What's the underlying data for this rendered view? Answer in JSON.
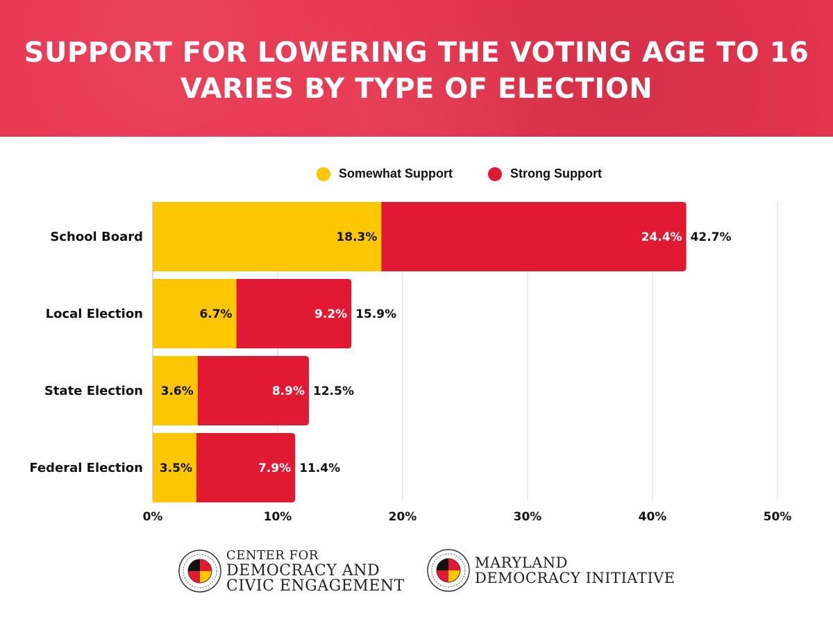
{
  "title": {
    "line1": "SUPPORT FOR LOWERING THE VOTING AGE TO 16",
    "line2": "VARIES BY TYPE OF ELECTION"
  },
  "colors": {
    "banner": "#e8344f",
    "somewhat": "#fcc600",
    "strong": "#e21933",
    "grid": "#d9d9d9"
  },
  "legend": {
    "somewhat": "Somewhat Support",
    "strong": "Strong Support"
  },
  "chart_data": {
    "type": "bar",
    "orientation": "horizontal",
    "stacked": true,
    "categories": [
      "School Board",
      "Local Election",
      "State Election",
      "Federal Election"
    ],
    "series": [
      {
        "name": "Somewhat Support",
        "values": [
          18.3,
          6.7,
          3.6,
          3.5
        ],
        "labels": [
          "18.3%",
          "6.7%",
          "3.6%",
          "3.5%"
        ]
      },
      {
        "name": "Strong Support",
        "values": [
          24.4,
          9.2,
          8.9,
          7.9
        ],
        "labels": [
          "24.4%",
          "9.2%",
          "8.9%",
          "7.9%"
        ]
      }
    ],
    "totals": [
      42.7,
      15.9,
      12.5,
      11.4
    ],
    "total_labels": [
      "42.7%",
      "15.9%",
      "12.5%",
      "11.4%"
    ],
    "xlim": [
      0,
      50
    ],
    "xticks": [
      0,
      10,
      20,
      30,
      40,
      50
    ],
    "xtick_labels": [
      "0%",
      "10%",
      "20%",
      "30%",
      "40%",
      "50%"
    ],
    "grid": true,
    "legend_position": "top"
  },
  "footer": {
    "logo1": {
      "line1": "CENTER FOR",
      "line2": "DEMOCRACY AND",
      "line3": "CIVIC ENGAGEMENT"
    },
    "logo2": {
      "line1": "MARYLAND",
      "line2": "DEMOCRACY INITIATIVE"
    },
    "seal_text": "UNIVERSITY OF MARYLAND",
    "seal_icon": "university-of-maryland-seal-icon"
  }
}
